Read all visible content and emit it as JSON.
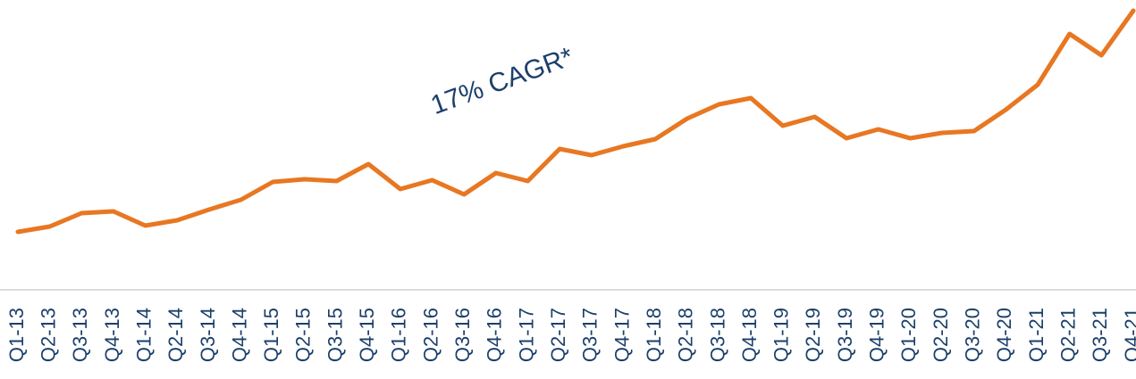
{
  "chart_data": {
    "type": "line",
    "annotation": "17% CAGR*",
    "categories": [
      "Q1-13",
      "Q2-13",
      "Q3-13",
      "Q4-13",
      "Q1-14",
      "Q2-14",
      "Q3-14",
      "Q4-14",
      "Q1-15",
      "Q2-15",
      "Q3-15",
      "Q4-15",
      "Q1-16",
      "Q2-16",
      "Q3-16",
      "Q4-16",
      "Q1-17",
      "Q2-17",
      "Q3-17",
      "Q4-17",
      "Q1-18",
      "Q2-18",
      "Q3-18",
      "Q4-18",
      "Q1-19",
      "Q2-19",
      "Q3-19",
      "Q4-19",
      "Q1-20",
      "Q2-20",
      "Q3-20",
      "Q4-20",
      "Q1-21",
      "Q2-21",
      "Q3-21",
      "Q4-21"
    ],
    "values": [
      65,
      71,
      86,
      88,
      72,
      78,
      90,
      101,
      121,
      124,
      122,
      141,
      113,
      123,
      107,
      131,
      122,
      158,
      151,
      161,
      169,
      192,
      208,
      215,
      184,
      194,
      170,
      180,
      170,
      176,
      178,
      202,
      230,
      287,
      263,
      313
    ],
    "color": "#e87722",
    "ylim": [
      0,
      325
    ]
  }
}
